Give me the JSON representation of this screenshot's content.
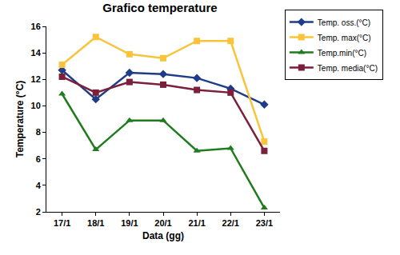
{
  "chart_data": {
    "type": "line",
    "title": "Grafico temperature",
    "x_label": "Data (gg)",
    "y_label": "Temperature (°C)",
    "categories": [
      "17/1",
      "18/1",
      "19/1",
      "20/1",
      "21/1",
      "22/1",
      "23/1"
    ],
    "series": [
      {
        "name": "Temp. oss.(°C)",
        "color": "#1f3c88",
        "marker": "diamond",
        "values": [
          12.7,
          10.5,
          12.5,
          12.4,
          12.1,
          11.3,
          10.1
        ]
      },
      {
        "name": "Temp. max(°C)",
        "color": "#f9c43a",
        "marker": "square",
        "values": [
          13.1,
          15.2,
          13.9,
          13.6,
          14.9,
          14.9,
          7.3
        ]
      },
      {
        "name": "Temp.min(°C)",
        "color": "#1e7b1e",
        "marker": "triangle",
        "values": [
          10.9,
          6.7,
          8.9,
          8.9,
          6.6,
          6.8,
          2.3
        ]
      },
      {
        "name": "Temp. media(°C)",
        "color": "#7b1f3a",
        "marker": "square",
        "values": [
          12.2,
          11.0,
          11.8,
          11.6,
          11.2,
          11.0,
          6.6
        ]
      }
    ],
    "ylim": [
      2,
      16
    ],
    "yticks": [
      2,
      4,
      6,
      8,
      10,
      12,
      14,
      16
    ],
    "grid": false,
    "legend": "top-right"
  }
}
